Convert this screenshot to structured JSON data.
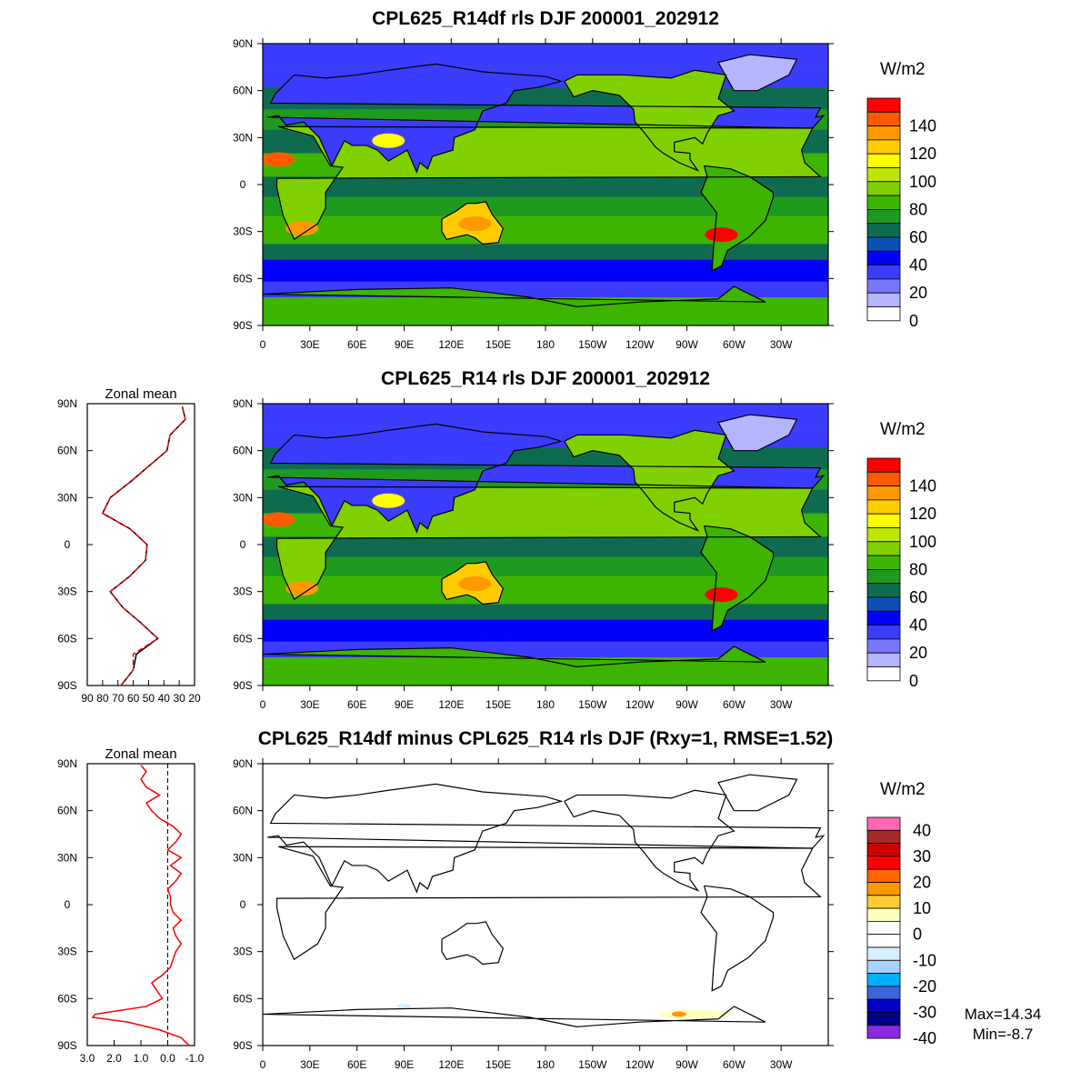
{
  "titles": {
    "top": "CPL625_R14df rls DJF 200001_202912",
    "middle": "CPL625_R14 rls DJF 200001_202912",
    "bottom": "CPL625_R14df minus CPL625_R14 rls DJF (Rxy=1, RMSE=1.52)"
  },
  "zonal_titles": {
    "middle": "Zonal mean",
    "bottom": "Zonal mean"
  },
  "units": {
    "top": "W/m2",
    "middle": "W/m2",
    "bottom": "W/m2"
  },
  "stats": {
    "max": "Max=14.34",
    "min": "Min=-8.7"
  },
  "lat_labels": [
    "90N",
    "60N",
    "30N",
    "0",
    "30S",
    "60S",
    "90S"
  ],
  "lon_labels": [
    "0",
    "30E",
    "60E",
    "90E",
    "120E",
    "150E",
    "180",
    "150W",
    "120W",
    "90W",
    "60W",
    "30W"
  ],
  "zonal_x_labels_mid": [
    "90",
    "80",
    "70",
    "60",
    "50",
    "40",
    "30",
    "20"
  ],
  "zonal_x_labels_bot": [
    "3.0",
    "2.0",
    "1.0",
    "0.0",
    "-1.0"
  ],
  "colorbar_full": {
    "labels": [
      "140",
      "120",
      "100",
      "80",
      "60",
      "40",
      "20",
      "0"
    ],
    "colors": [
      "#ff0000",
      "#ff5a00",
      "#ff9900",
      "#ffcc00",
      "#ffff00",
      "#bfe600",
      "#80d000",
      "#3cb400",
      "#1e9a1e",
      "#0f6b50",
      "#0a50b4",
      "#0000ff",
      "#3c3cff",
      "#7878ff",
      "#b4b4ff",
      "#ffffff"
    ]
  },
  "colorbar_diff": {
    "labels": [
      "40",
      "30",
      "20",
      "10",
      "0",
      "-10",
      "-20",
      "-30",
      "-40"
    ],
    "colors": [
      "#ff69b4",
      "#a52a2a",
      "#cc0000",
      "#ff0000",
      "#ff6600",
      "#ff9900",
      "#ffcc33",
      "#ffffc0",
      "#ffffff",
      "#ffffff",
      "#d6f0ff",
      "#a6d2ff",
      "#00b0ff",
      "#3c64dc",
      "#0000c8",
      "#00008b",
      "#8a2be2"
    ]
  },
  "chart_data": [
    {
      "type": "line",
      "title": "Zonal mean",
      "xlim": [
        90,
        20
      ],
      "series": [
        {
          "color": "#000000",
          "lat": [
            -90,
            -80,
            -70,
            -60,
            -50,
            -40,
            -30,
            -20,
            -10,
            0,
            10,
            20,
            30,
            40,
            50,
            60,
            70,
            80,
            88
          ],
          "values": [
            68,
            60,
            58,
            44,
            55,
            67,
            75,
            62,
            52,
            51,
            62,
            80,
            75,
            62,
            50,
            38,
            36,
            26,
            28
          ]
        },
        {
          "color": "#ff0000",
          "lat": [
            -90,
            -80,
            -70,
            -60,
            -50,
            -40,
            -30,
            -20,
            -10,
            0,
            10,
            20,
            30,
            40,
            50,
            60,
            70,
            80,
            88
          ],
          "values": [
            68,
            60,
            60,
            44,
            55,
            67,
            75,
            62,
            52,
            51,
            62,
            80,
            75,
            62,
            50,
            38,
            36,
            26,
            28
          ]
        }
      ]
    },
    {
      "type": "line",
      "title": "Zonal mean",
      "xlim": [
        3.0,
        -1.0
      ],
      "series": [
        {
          "color": "#ff0000",
          "lat": [
            -90,
            -85,
            -80,
            -75,
            -72,
            -70,
            -65,
            -60,
            -55,
            -50,
            -45,
            -40,
            -35,
            -30,
            -25,
            -20,
            -15,
            -10,
            -5,
            0,
            5,
            10,
            15,
            20,
            25,
            30,
            35,
            40,
            45,
            50,
            55,
            60,
            65,
            70,
            75,
            80,
            85,
            89
          ],
          "values": [
            -0.8,
            -0.5,
            0.3,
            1.5,
            2.8,
            2.7,
            0.8,
            0.2,
            0.4,
            0.6,
            0.2,
            -0.1,
            -0.2,
            -0.3,
            -0.5,
            -0.3,
            -0.2,
            -0.5,
            -0.2,
            -0.1,
            -0.1,
            0.0,
            -0.3,
            -0.5,
            -0.1,
            -0.5,
            0.0,
            -0.3,
            -0.5,
            -0.2,
            0.3,
            0.6,
            0.8,
            0.3,
            0.8,
            1.0,
            0.8,
            1.0
          ]
        }
      ]
    }
  ]
}
